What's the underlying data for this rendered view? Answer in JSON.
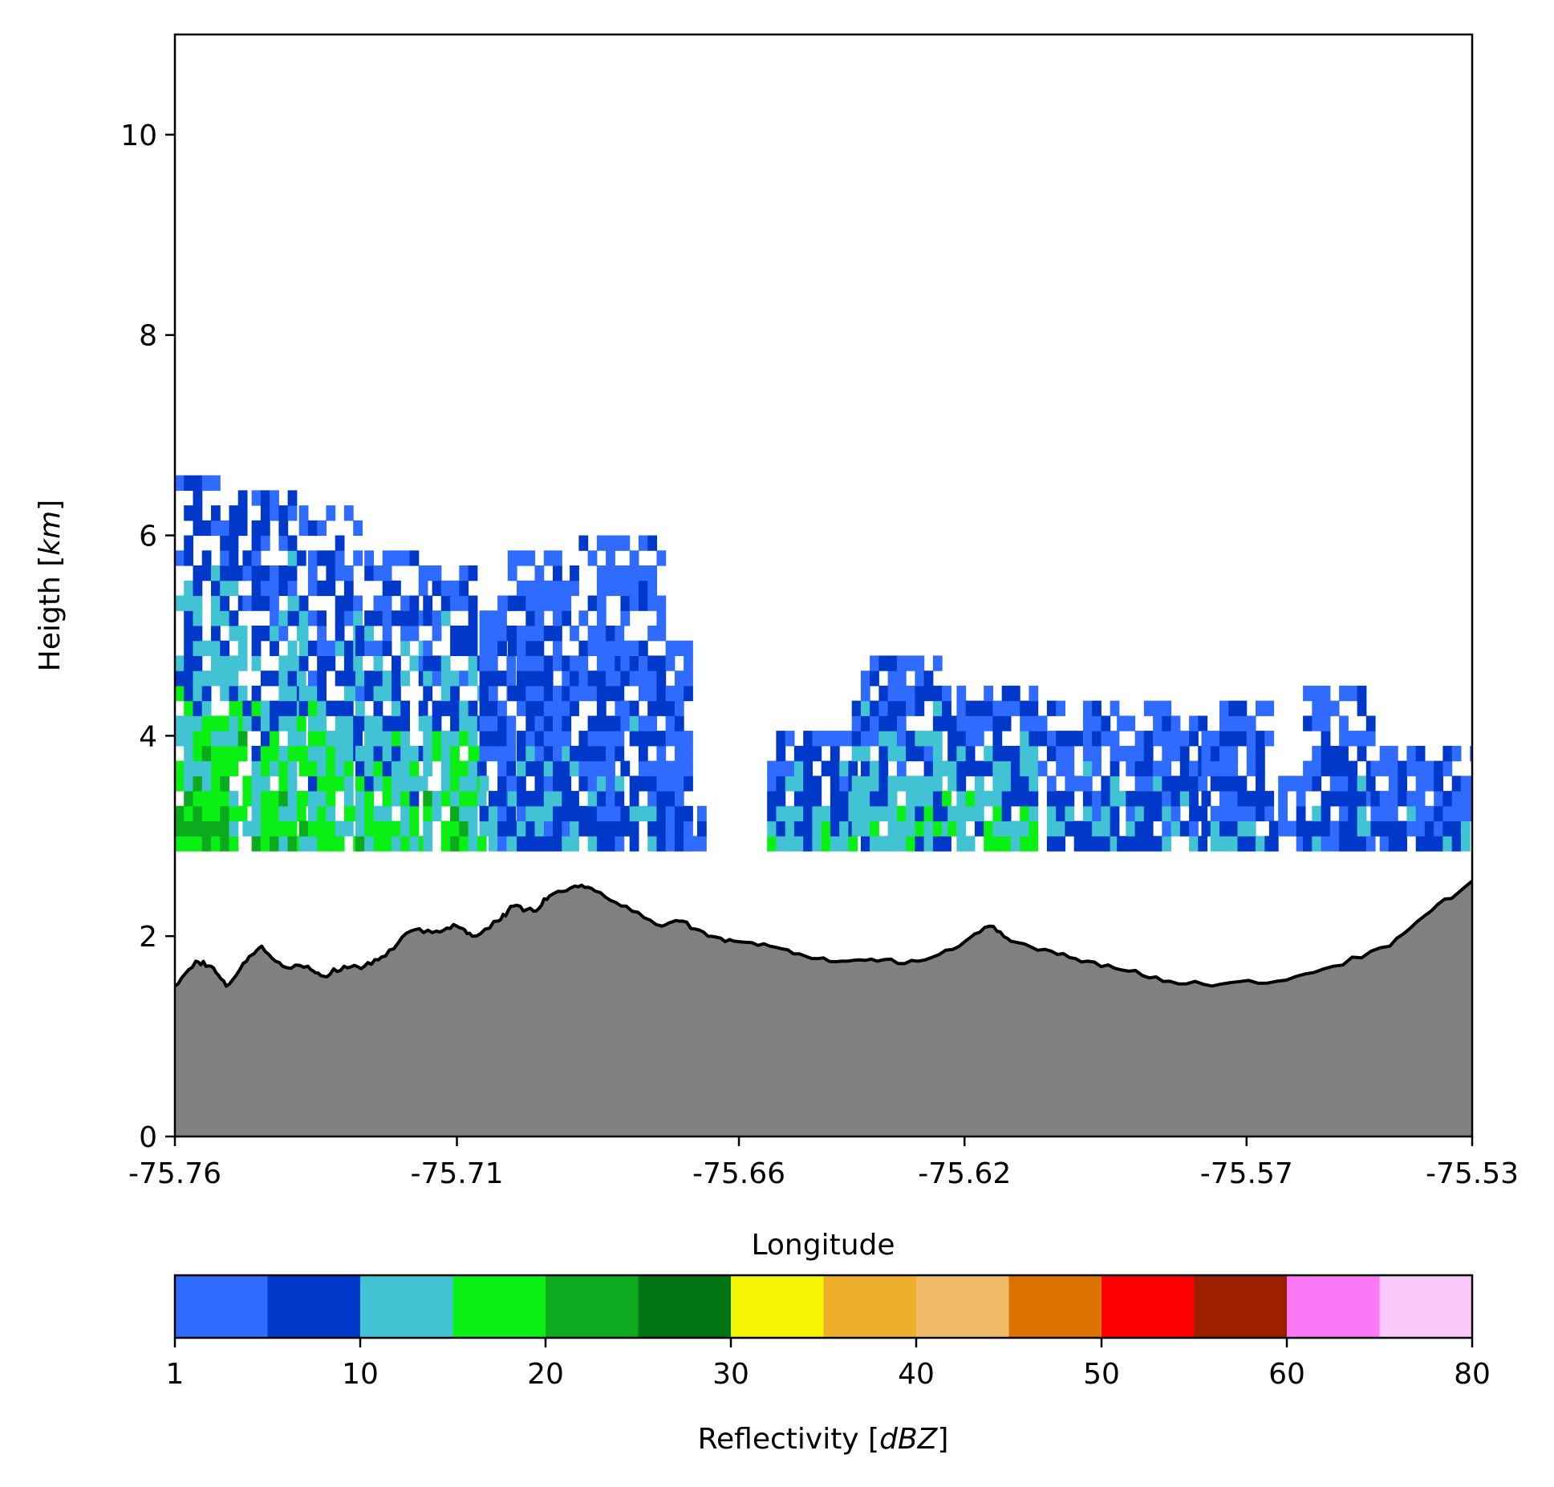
{
  "chart_data": {
    "type": "heatmap",
    "title": "",
    "xlabel": "Longitude",
    "ylabel_text": "Heigth [",
    "ylabel_unit": "km",
    "ylabel_close": "]",
    "xlim": [
      -75.76,
      -75.53
    ],
    "ylim": [
      0,
      11
    ],
    "x_ticks": [
      -75.76,
      -75.71,
      -75.66,
      -75.62,
      -75.57,
      -75.53
    ],
    "x_tick_labels": [
      "-75.76",
      "-75.71",
      "-75.66",
      "-75.62",
      "-75.57",
      "-75.53"
    ],
    "y_ticks": [
      0,
      2,
      4,
      6,
      8,
      10
    ],
    "y_tick_labels": [
      "0",
      "2",
      "4",
      "6",
      "8",
      "10"
    ],
    "grid": false,
    "radar_bottom_km": 2.85,
    "cell_width_lon": 0.0016,
    "cell_height_km": 0.15,
    "echo_columns": [
      {
        "x0": -75.76,
        "x1": -75.748,
        "top": 6.6,
        "core": 20
      },
      {
        "x0": -75.748,
        "x1": -75.738,
        "top": 6.4,
        "core": 18
      },
      {
        "x0": -75.738,
        "x1": -75.728,
        "top": 6.2,
        "core": 17
      },
      {
        "x0": -75.728,
        "x1": -75.716,
        "top": 5.8,
        "core": 16
      },
      {
        "x0": -75.716,
        "x1": -75.706,
        "top": 5.7,
        "core": 18
      },
      {
        "x0": -75.706,
        "x1": -75.7,
        "top": 5.4,
        "core": 8
      },
      {
        "x0": -75.701,
        "x1": -75.69,
        "top": 5.8,
        "core": 9
      },
      {
        "x0": -75.69,
        "x1": -75.681,
        "top": 5.9,
        "core": 8
      },
      {
        "x0": -75.681,
        "x1": -75.673,
        "top": 5.9,
        "core": 8
      },
      {
        "x0": -75.673,
        "x1": -75.669,
        "top": 4.9,
        "core": 5
      },
      {
        "x0": -75.669,
        "x1": -75.666,
        "top": 3.2,
        "core": 3
      },
      {
        "x0": -75.655,
        "x1": -75.64,
        "top": 4.0,
        "core": 14
      },
      {
        "x0": -75.64,
        "x1": -75.623,
        "top": 4.8,
        "core": 13
      },
      {
        "x0": -75.623,
        "x1": -75.607,
        "top": 4.5,
        "core": 15
      },
      {
        "x0": -75.607,
        "x1": -75.593,
        "top": 4.3,
        "core": 10
      },
      {
        "x0": -75.593,
        "x1": -75.578,
        "top": 4.3,
        "core": 9
      },
      {
        "x0": -75.578,
        "x1": -75.566,
        "top": 4.3,
        "core": 9
      },
      {
        "x0": -75.566,
        "x1": -75.56,
        "top": 3.5,
        "core": 6
      },
      {
        "x0": -75.56,
        "x1": -75.548,
        "top": 4.5,
        "core": 8
      },
      {
        "x0": -75.548,
        "x1": -75.53,
        "top": 3.9,
        "core": 9
      }
    ],
    "terrain": {
      "fill_color": "#808080",
      "line_color": "#000000",
      "x": [
        -75.76,
        -75.7563,
        -75.7536,
        -75.7509,
        -75.7473,
        -75.7446,
        -75.7409,
        -75.7364,
        -75.7337,
        -75.73,
        -75.7264,
        -75.7227,
        -75.7182,
        -75.7136,
        -75.71,
        -75.7073,
        -75.7027,
        -75.7,
        -75.6964,
        -75.6936,
        -75.6891,
        -75.6855,
        -75.68,
        -75.6736,
        -75.67,
        -75.6655,
        -75.6609,
        -75.6545,
        -75.6482,
        -75.6418,
        -75.6355,
        -75.6282,
        -75.6209,
        -75.6155,
        -75.6118,
        -75.6046,
        -75.5982,
        -75.5909,
        -75.5836,
        -75.5746,
        -75.5646,
        -75.5546,
        -75.5446,
        -75.5373,
        -75.53
      ],
      "y": [
        1.5,
        1.75,
        1.7,
        1.5,
        1.75,
        1.9,
        1.7,
        1.7,
        1.6,
        1.7,
        1.7,
        1.8,
        2.05,
        2.05,
        2.1,
        2.0,
        2.15,
        2.3,
        2.25,
        2.4,
        2.5,
        2.45,
        2.3,
        2.1,
        2.15,
        2.0,
        1.95,
        1.9,
        1.8,
        1.75,
        1.75,
        1.75,
        1.9,
        2.1,
        1.95,
        1.85,
        1.75,
        1.65,
        1.55,
        1.52,
        1.55,
        1.7,
        1.9,
        2.25,
        2.55
      ]
    },
    "colorbar": {
      "label_text": "Reflectivity [",
      "label_unit": "dBZ",
      "label_close": "]",
      "bounds": [
        1,
        5,
        10,
        15,
        20,
        25,
        30,
        35,
        40,
        45,
        50,
        55,
        60,
        65,
        80
      ],
      "colors": [
        "#2f6bff",
        "#0039c9",
        "#42c3d4",
        "#0af014",
        "#0baa1f",
        "#007314",
        "#f6f402",
        "#eeaf2d",
        "#efbb69",
        "#dc7200",
        "#ff0000",
        "#9c1f00",
        "#fd78f6",
        "#f9c7fa"
      ],
      "tick_values": [
        1,
        10,
        20,
        30,
        40,
        50,
        60,
        80
      ],
      "tick_labels": [
        "1",
        "10",
        "20",
        "30",
        "40",
        "50",
        "60",
        "80"
      ]
    }
  }
}
